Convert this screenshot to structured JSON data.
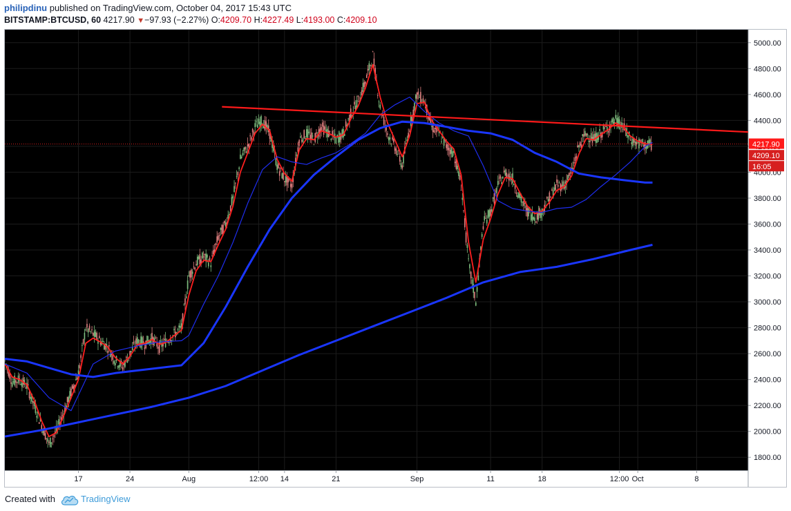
{
  "header": {
    "author": "philipdinu",
    "published": "published on TradingView.com, October 04, 2017 15:43 UTC",
    "symbol": "BITSTAMP:BTCUSD, 60",
    "last": "4217.90",
    "change": "−97.93 (−2.27%)",
    "o_label": "O:",
    "o_value": "4209.70",
    "h_label": "H:",
    "h_value": "4227.49",
    "l_label": "L:",
    "l_value": "4193.00",
    "c_label": "C:",
    "c_value": "4209.10"
  },
  "footer": {
    "created_with": "Created with",
    "brand": "TradingView"
  },
  "colors": {
    "background": "#000000",
    "ema_short": "#ff1f1f",
    "ma_mid": "#1f2ef0",
    "ma_long": "#1a36ff",
    "trendline": "#ff1a1a",
    "price_tag_dark": "#ff1a1a",
    "price_tag": "#d61f1f",
    "candle_up": "#7fbf7f",
    "candle_down": "#e08080"
  },
  "chart_data": {
    "type": "line",
    "title": "",
    "symbol": "BITSTAMP:BTCUSD",
    "interval": "60",
    "ylim": [
      1700,
      5100
    ],
    "y_ticks": [
      "5000.00",
      "4800.00",
      "4600.00",
      "4400.00",
      "4200.00",
      "4000.00",
      "3800.00",
      "3600.00",
      "3400.00",
      "3200.00",
      "3000.00",
      "2800.00",
      "2600.00",
      "2400.00",
      "2200.00",
      "2000.00",
      "1800.00"
    ],
    "x_ticks": [
      "17",
      "24",
      "Aug",
      "12:00",
      "14",
      "21",
      "Sep",
      "11",
      "18",
      "12:00",
      "Oct",
      "8"
    ],
    "x_tick_days": [
      17,
      24,
      32,
      41.5,
      45,
      52,
      63,
      73,
      80,
      90.5,
      93,
      101
    ],
    "xlim": [
      7,
      108
    ],
    "price_labels": {
      "last": "4217.90",
      "close": "4209.10",
      "countdown": "16:05"
    },
    "series": [
      {
        "kind": "price",
        "x": [
          7,
          8,
          9,
          10,
          11,
          12,
          13,
          14,
          15,
          16,
          17,
          18,
          19,
          20,
          21,
          22,
          23,
          24,
          25,
          26,
          27,
          28,
          29,
          30,
          31,
          32,
          33,
          34,
          35,
          36,
          37,
          38,
          39,
          40,
          41,
          42,
          43,
          44,
          45,
          46,
          47,
          48,
          49,
          50,
          51,
          52,
          53,
          54,
          55,
          56,
          57,
          58,
          59,
          60,
          61,
          62,
          63,
          64,
          65,
          66,
          67,
          68,
          69,
          70,
          71,
          72,
          73,
          74,
          75,
          76,
          77,
          78,
          79,
          80,
          81,
          82,
          83,
          84,
          85,
          86,
          87,
          88,
          89,
          90,
          91,
          92,
          93,
          94,
          95
        ],
        "values": [
          2550,
          2380,
          2400,
          2350,
          2200,
          2050,
          1900,
          2000,
          2150,
          2300,
          2450,
          2800,
          2750,
          2700,
          2650,
          2550,
          2500,
          2600,
          2700,
          2680,
          2720,
          2650,
          2700,
          2750,
          2800,
          3200,
          3300,
          3350,
          3300,
          3500,
          3600,
          3800,
          4100,
          4200,
          4350,
          4400,
          4300,
          4050,
          3950,
          3900,
          4250,
          4300,
          4250,
          4350,
          4300,
          4250,
          4300,
          4450,
          4550,
          4700,
          4900,
          4500,
          4300,
          4200,
          4050,
          4350,
          4600,
          4550,
          4350,
          4300,
          4200,
          4150,
          3900,
          3300,
          3000,
          3600,
          3700,
          3900,
          4000,
          3950,
          3800,
          3700,
          3650,
          3700,
          3800,
          3900,
          3900,
          4000,
          4200,
          4300,
          4250,
          4300,
          4350,
          4400,
          4350,
          4250,
          4220,
          4210,
          4210
        ]
      },
      {
        "name": "",
        "kind": "ema_short",
        "x": [
          7,
          8,
          9,
          10,
          11,
          12,
          13,
          14,
          15,
          16,
          17,
          18,
          19,
          20,
          21,
          22,
          23,
          24,
          25,
          26,
          27,
          28,
          29,
          30,
          31,
          32,
          33,
          34,
          35,
          36,
          37,
          38,
          39,
          40,
          41,
          42,
          43,
          44,
          45,
          46,
          47,
          48,
          49,
          50,
          51,
          52,
          53,
          54,
          55,
          56,
          57,
          58,
          59,
          60,
          61,
          62,
          63,
          64,
          65,
          66,
          67,
          68,
          69,
          70,
          71,
          72,
          73,
          74,
          75,
          76,
          77,
          78,
          79,
          80,
          81,
          82,
          83,
          84,
          85,
          86,
          87,
          88,
          89,
          90,
          91,
          92,
          93,
          94,
          95
        ],
        "values": [
          2520,
          2420,
          2400,
          2360,
          2240,
          2080,
          1960,
          1990,
          2120,
          2260,
          2400,
          2680,
          2720,
          2690,
          2650,
          2570,
          2520,
          2580,
          2670,
          2680,
          2710,
          2670,
          2690,
          2740,
          2780,
          3050,
          3240,
          3320,
          3310,
          3440,
          3560,
          3740,
          4000,
          4150,
          4300,
          4370,
          4320,
          4100,
          3990,
          3930,
          4170,
          4260,
          4250,
          4320,
          4300,
          4270,
          4290,
          4410,
          4510,
          4650,
          4830,
          4580,
          4380,
          4250,
          4120,
          4280,
          4530,
          4540,
          4400,
          4320,
          4240,
          4180,
          3980,
          3460,
          3150,
          3480,
          3640,
          3830,
          3960,
          3950,
          3840,
          3740,
          3680,
          3700,
          3770,
          3860,
          3890,
          3970,
          4140,
          4260,
          4250,
          4290,
          4330,
          4380,
          4350,
          4280,
          4240,
          4220,
          4215
        ]
      },
      {
        "name": "",
        "kind": "ma_mid",
        "x": [
          7,
          10,
          13,
          16,
          19,
          22,
          25,
          28,
          31,
          32,
          34,
          36,
          38,
          40,
          42,
          44,
          46,
          48,
          50,
          52,
          54,
          56,
          58,
          60,
          62,
          64,
          66,
          68,
          70,
          72,
          74,
          76,
          78,
          80,
          82,
          84,
          86,
          88,
          90,
          92,
          94,
          95
        ],
        "values": [
          2520,
          2450,
          2260,
          2160,
          2520,
          2620,
          2660,
          2690,
          2700,
          2740,
          2980,
          3200,
          3460,
          3760,
          4020,
          4120,
          4080,
          4060,
          4110,
          4150,
          4220,
          4300,
          4440,
          4520,
          4580,
          4470,
          4380,
          4320,
          4280,
          4050,
          3780,
          3720,
          3700,
          3690,
          3720,
          3730,
          3790,
          3890,
          3980,
          4080,
          4200,
          4230
        ]
      },
      {
        "name": "",
        "kind": "ma_long",
        "x": [
          7,
          10,
          13,
          16,
          19,
          22,
          25,
          28,
          31,
          34,
          37,
          40,
          43,
          46,
          49,
          52,
          55,
          58,
          61,
          64,
          67,
          70,
          73,
          76,
          79,
          82,
          85,
          88,
          91,
          94,
          95
        ],
        "values": [
          2560,
          2540,
          2490,
          2440,
          2420,
          2450,
          2470,
          2490,
          2510,
          2680,
          2960,
          3270,
          3560,
          3800,
          3980,
          4120,
          4250,
          4340,
          4390,
          4380,
          4350,
          4320,
          4300,
          4250,
          4150,
          4080,
          3990,
          3960,
          3940,
          3920,
          3920
        ]
      },
      {
        "name": "",
        "kind": "ma_long",
        "x": [
          7,
          12,
          17,
          22,
          27,
          32,
          37,
          42,
          47,
          52,
          57,
          62,
          67,
          72,
          77,
          82,
          87,
          92,
          95
        ],
        "values": [
          1960,
          2010,
          2070,
          2130,
          2190,
          2260,
          2350,
          2470,
          2590,
          2700,
          2810,
          2920,
          3030,
          3150,
          3230,
          3270,
          3330,
          3400,
          3440
        ]
      },
      {
        "name": "",
        "kind": "trendline",
        "x": [
          36.5,
          108
        ],
        "values": [
          4505,
          4310
        ]
      }
    ]
  }
}
